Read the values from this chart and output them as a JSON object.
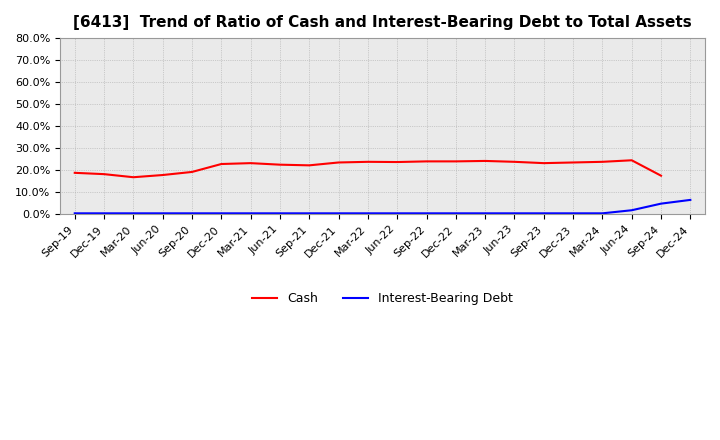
{
  "title": "[6413]  Trend of Ratio of Cash and Interest-Bearing Debt to Total Assets",
  "ylim": [
    0.0,
    0.8
  ],
  "yticks": [
    0.0,
    0.1,
    0.2,
    0.3,
    0.4,
    0.5,
    0.6,
    0.7,
    0.8
  ],
  "ytick_labels": [
    "0.0%",
    "10.0%",
    "20.0%",
    "30.0%",
    "40.0%",
    "50.0%",
    "60.0%",
    "70.0%",
    "80.0%"
  ],
  "x_labels": [
    "Sep-19",
    "Dec-19",
    "Mar-20",
    "Jun-20",
    "Sep-20",
    "Dec-20",
    "Mar-21",
    "Jun-21",
    "Sep-21",
    "Dec-21",
    "Mar-22",
    "Jun-22",
    "Sep-22",
    "Dec-22",
    "Mar-23",
    "Jun-23",
    "Sep-23",
    "Dec-23",
    "Mar-24",
    "Jun-24",
    "Sep-24",
    "Dec-24"
  ],
  "cash_values": [
    0.188,
    0.182,
    0.168,
    0.178,
    0.192,
    0.228,
    0.232,
    0.225,
    0.222,
    0.235,
    0.238,
    0.237,
    0.24,
    0.24,
    0.242,
    0.238,
    0.232,
    0.235,
    0.238,
    0.245,
    0.175,
    null
  ],
  "debt_values": [
    0.004,
    0.004,
    0.004,
    0.004,
    0.004,
    0.004,
    0.004,
    0.004,
    0.004,
    0.004,
    0.004,
    0.004,
    0.004,
    0.004,
    0.004,
    0.004,
    0.004,
    0.004,
    0.004,
    0.018,
    0.048,
    0.065
  ],
  "cash_color": "#ff0000",
  "debt_color": "#0000ff",
  "grid_color": "#aaaaaa",
  "background_color": "#ffffff",
  "plot_bg_color": "#eaeaea",
  "title_fontsize": 11,
  "tick_fontsize": 8,
  "legend_fontsize": 9
}
